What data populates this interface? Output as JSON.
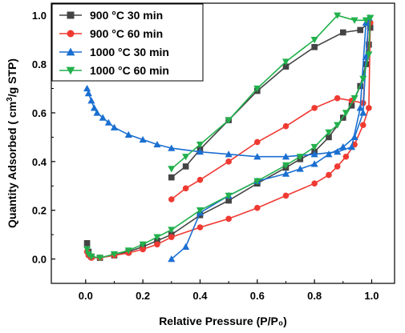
{
  "chart_data": {
    "type": "line",
    "xlabel": "Relative Pressure (P/P₀)",
    "ylabel_main": "Quantity Adsorbed ( cm",
    "ylabel_sup": "3",
    "ylabel_tail": "/g STP)",
    "xlim": [
      -0.12,
      1.08
    ],
    "ylim": [
      -0.1,
      1.05
    ],
    "x_ticks": [
      0.0,
      0.2,
      0.4,
      0.6,
      0.8,
      1.0
    ],
    "x_tick_labels": [
      "0.0",
      "0.2",
      "0.4",
      "0.6",
      "0.8",
      "1.0"
    ],
    "y_ticks": [
      0.0,
      0.2,
      0.4,
      0.6,
      0.8,
      1.0
    ],
    "y_tick_labels": [
      "0.0",
      "0.2",
      "0.4",
      "0.6",
      "0.8",
      "1.0"
    ],
    "legend_position": "top-left",
    "grid": false,
    "series": [
      {
        "name": "900 °C 30 min",
        "color": "#444444",
        "marker": "square",
        "adsorption": [
          [
            0.005,
            0.065
          ],
          [
            0.01,
            0.03
          ],
          [
            0.02,
            0.01
          ],
          [
            0.05,
            0.005
          ],
          [
            0.1,
            0.015
          ],
          [
            0.15,
            0.03
          ],
          [
            0.2,
            0.05
          ],
          [
            0.25,
            0.075
          ],
          [
            0.3,
            0.1
          ],
          [
            0.4,
            0.18
          ],
          [
            0.5,
            0.24
          ],
          [
            0.6,
            0.31
          ],
          [
            0.7,
            0.375
          ],
          [
            0.75,
            0.41
          ],
          [
            0.8,
            0.44
          ],
          [
            0.85,
            0.5
          ],
          [
            0.9,
            0.58
          ],
          [
            0.93,
            0.63
          ],
          [
            0.96,
            0.71
          ],
          [
            0.98,
            0.8
          ],
          [
            0.99,
            0.88
          ],
          [
            0.995,
            0.95
          ]
        ],
        "desorption": [
          [
            0.995,
            0.95
          ],
          [
            0.99,
            0.97
          ],
          [
            0.96,
            0.94
          ],
          [
            0.9,
            0.93
          ],
          [
            0.8,
            0.87
          ],
          [
            0.7,
            0.79
          ],
          [
            0.6,
            0.69
          ],
          [
            0.5,
            0.57
          ],
          [
            0.4,
            0.45
          ],
          [
            0.35,
            0.38
          ],
          [
            0.3,
            0.335
          ]
        ]
      },
      {
        "name": "900 °C 60 min",
        "color": "#ef3a32",
        "marker": "circle",
        "adsorption": [
          [
            0.005,
            0.03
          ],
          [
            0.01,
            0.015
          ],
          [
            0.02,
            0.005
          ],
          [
            0.05,
            0.005
          ],
          [
            0.1,
            0.015
          ],
          [
            0.15,
            0.025
          ],
          [
            0.2,
            0.04
          ],
          [
            0.25,
            0.06
          ],
          [
            0.3,
            0.09
          ],
          [
            0.4,
            0.13
          ],
          [
            0.5,
            0.165
          ],
          [
            0.6,
            0.21
          ],
          [
            0.7,
            0.26
          ],
          [
            0.8,
            0.31
          ],
          [
            0.85,
            0.345
          ],
          [
            0.88,
            0.38
          ],
          [
            0.91,
            0.42
          ],
          [
            0.94,
            0.47
          ],
          [
            0.97,
            0.55
          ],
          [
            0.99,
            0.62
          ],
          [
            0.995,
            0.97
          ]
        ],
        "desorption": [
          [
            0.995,
            0.97
          ],
          [
            0.99,
            0.98
          ],
          [
            0.97,
            0.64
          ],
          [
            0.93,
            0.65
          ],
          [
            0.88,
            0.66
          ],
          [
            0.8,
            0.62
          ],
          [
            0.7,
            0.545
          ],
          [
            0.6,
            0.48
          ],
          [
            0.5,
            0.4
          ],
          [
            0.4,
            0.325
          ],
          [
            0.35,
            0.29
          ],
          [
            0.3,
            0.245
          ]
        ]
      },
      {
        "name": "1000 °C 30 min",
        "color": "#1a6fd1",
        "marker": "triangle-up",
        "adsorption": [
          [
            0.3,
            0.0
          ],
          [
            0.35,
            0.05
          ],
          [
            0.4,
            0.19
          ],
          [
            0.5,
            0.26
          ],
          [
            0.6,
            0.32
          ],
          [
            0.7,
            0.35
          ],
          [
            0.75,
            0.37
          ],
          [
            0.8,
            0.39
          ],
          [
            0.85,
            0.43
          ],
          [
            0.9,
            0.46
          ],
          [
            0.94,
            0.5
          ],
          [
            0.97,
            0.6
          ],
          [
            0.98,
            0.83
          ],
          [
            0.99,
            0.99
          ]
        ],
        "desorption": [
          [
            0.99,
            0.99
          ],
          [
            0.98,
            0.97
          ],
          [
            0.96,
            0.62
          ],
          [
            0.93,
            0.46
          ],
          [
            0.88,
            0.44
          ],
          [
            0.8,
            0.43
          ],
          [
            0.7,
            0.42
          ],
          [
            0.6,
            0.42
          ],
          [
            0.5,
            0.43
          ],
          [
            0.4,
            0.44
          ],
          [
            0.3,
            0.455
          ],
          [
            0.25,
            0.47
          ],
          [
            0.2,
            0.49
          ],
          [
            0.15,
            0.51
          ],
          [
            0.1,
            0.54
          ],
          [
            0.08,
            0.56
          ],
          [
            0.06,
            0.58
          ],
          [
            0.04,
            0.6
          ],
          [
            0.03,
            0.62
          ],
          [
            0.02,
            0.65
          ],
          [
            0.01,
            0.68
          ],
          [
            0.005,
            0.7
          ]
        ]
      },
      {
        "name": "1000 °C 60 min",
        "color": "#22b14c",
        "marker": "triangle-down",
        "adsorption": [
          [
            0.005,
            0.04
          ],
          [
            0.01,
            0.02
          ],
          [
            0.02,
            0.01
          ],
          [
            0.05,
            0.005
          ],
          [
            0.1,
            0.02
          ],
          [
            0.15,
            0.035
          ],
          [
            0.2,
            0.06
          ],
          [
            0.25,
            0.09
          ],
          [
            0.3,
            0.12
          ],
          [
            0.4,
            0.2
          ],
          [
            0.5,
            0.26
          ],
          [
            0.6,
            0.32
          ],
          [
            0.7,
            0.385
          ],
          [
            0.75,
            0.42
          ],
          [
            0.8,
            0.46
          ],
          [
            0.85,
            0.52
          ],
          [
            0.88,
            0.55
          ],
          [
            0.91,
            0.6
          ],
          [
            0.94,
            0.66
          ],
          [
            0.97,
            0.74
          ],
          [
            0.99,
            0.84
          ],
          [
            0.995,
            0.99
          ]
        ],
        "desorption": [
          [
            0.995,
            0.99
          ],
          [
            0.98,
            0.98
          ],
          [
            0.94,
            0.98
          ],
          [
            0.88,
            1.0
          ],
          [
            0.8,
            0.9
          ],
          [
            0.7,
            0.81
          ],
          [
            0.6,
            0.7
          ],
          [
            0.5,
            0.57
          ],
          [
            0.4,
            0.47
          ],
          [
            0.35,
            0.42
          ],
          [
            0.3,
            0.37
          ]
        ]
      }
    ]
  }
}
